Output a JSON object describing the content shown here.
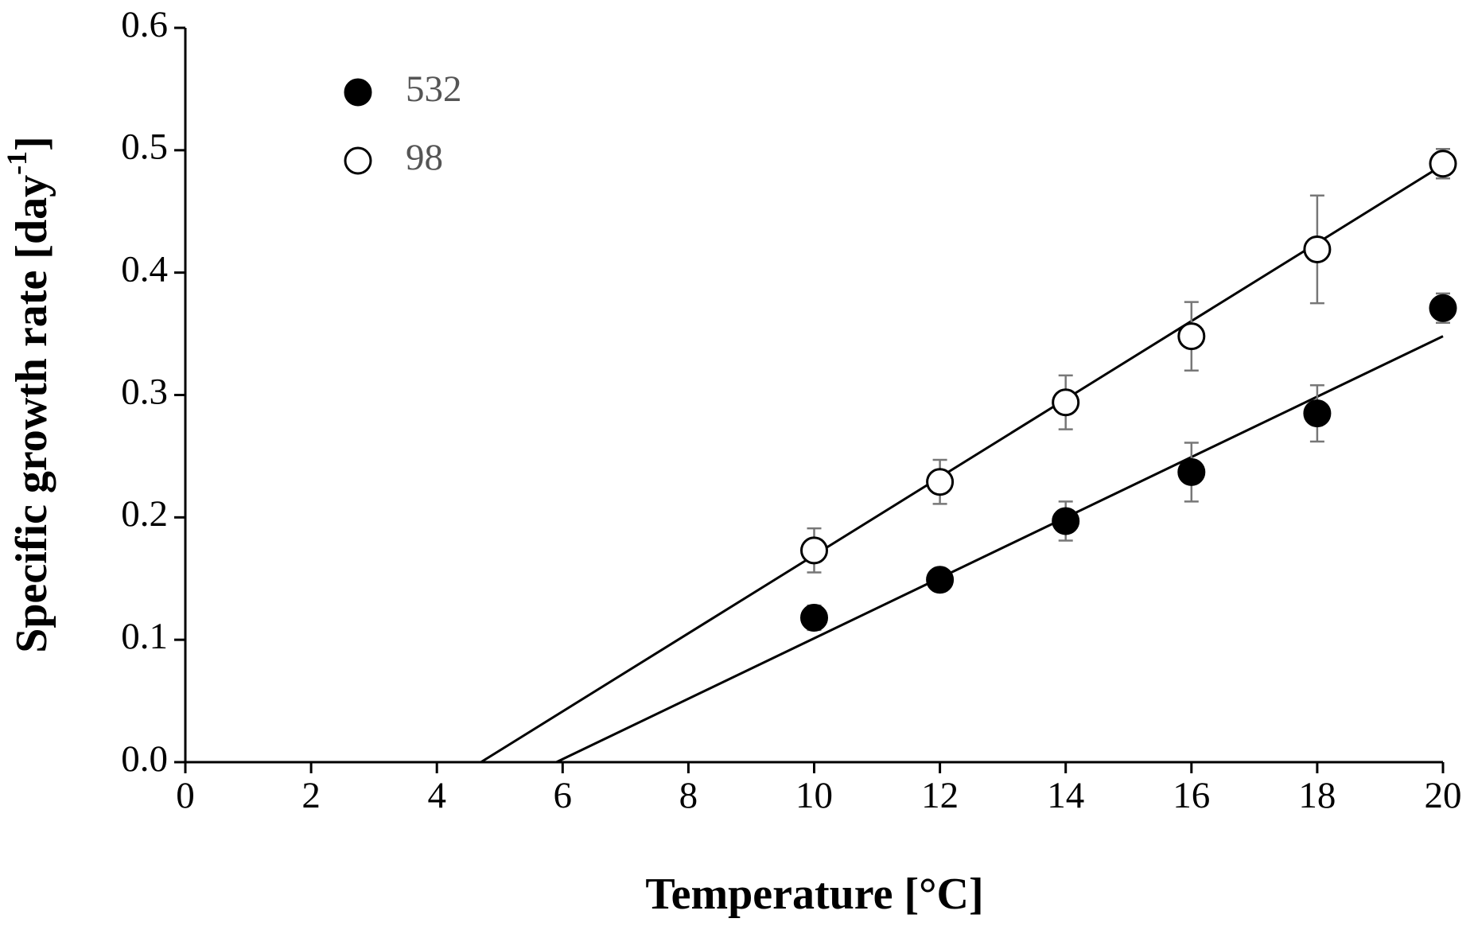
{
  "chart_data": {
    "type": "scatter",
    "xlabel": "Temperature [°C]",
    "ylabel": {
      "text": "Specific growth rate [day",
      "sup": "-1",
      "end": "]"
    },
    "xlim": [
      0,
      20
    ],
    "ylim": [
      0,
      0.6
    ],
    "xticks": [
      0,
      2,
      4,
      6,
      8,
      10,
      12,
      14,
      16,
      18,
      20
    ],
    "yticks": [
      {
        "value": 0,
        "label": "0.0"
      },
      0.1,
      0.2,
      0.3,
      0.4,
      0.5,
      0.6
    ],
    "series": [
      {
        "name": "532",
        "color": "#000000",
        "filled": true,
        "x": [
          10,
          12,
          14,
          16,
          18,
          20
        ],
        "values": [
          0.118,
          0.149,
          0.197,
          0.237,
          0.285,
          0.371
        ],
        "errors": [
          0.01,
          0.005,
          0.016,
          0.024,
          0.023,
          0.012
        ],
        "trendline": {
          "x": [
            5.9,
            20
          ],
          "values": [
            0,
            0.348
          ]
        }
      },
      {
        "name": "98",
        "color": "#000000",
        "filled": false,
        "x": [
          10,
          12,
          14,
          16,
          18,
          20
        ],
        "values": [
          0.173,
          0.229,
          0.294,
          0.348,
          0.419,
          0.489
        ],
        "errors": [
          0.018,
          0.018,
          0.022,
          0.028,
          0.044,
          0.012
        ],
        "trendline": {
          "x": [
            4.7,
            20
          ],
          "values": [
            0,
            0.488
          ]
        }
      }
    ]
  }
}
